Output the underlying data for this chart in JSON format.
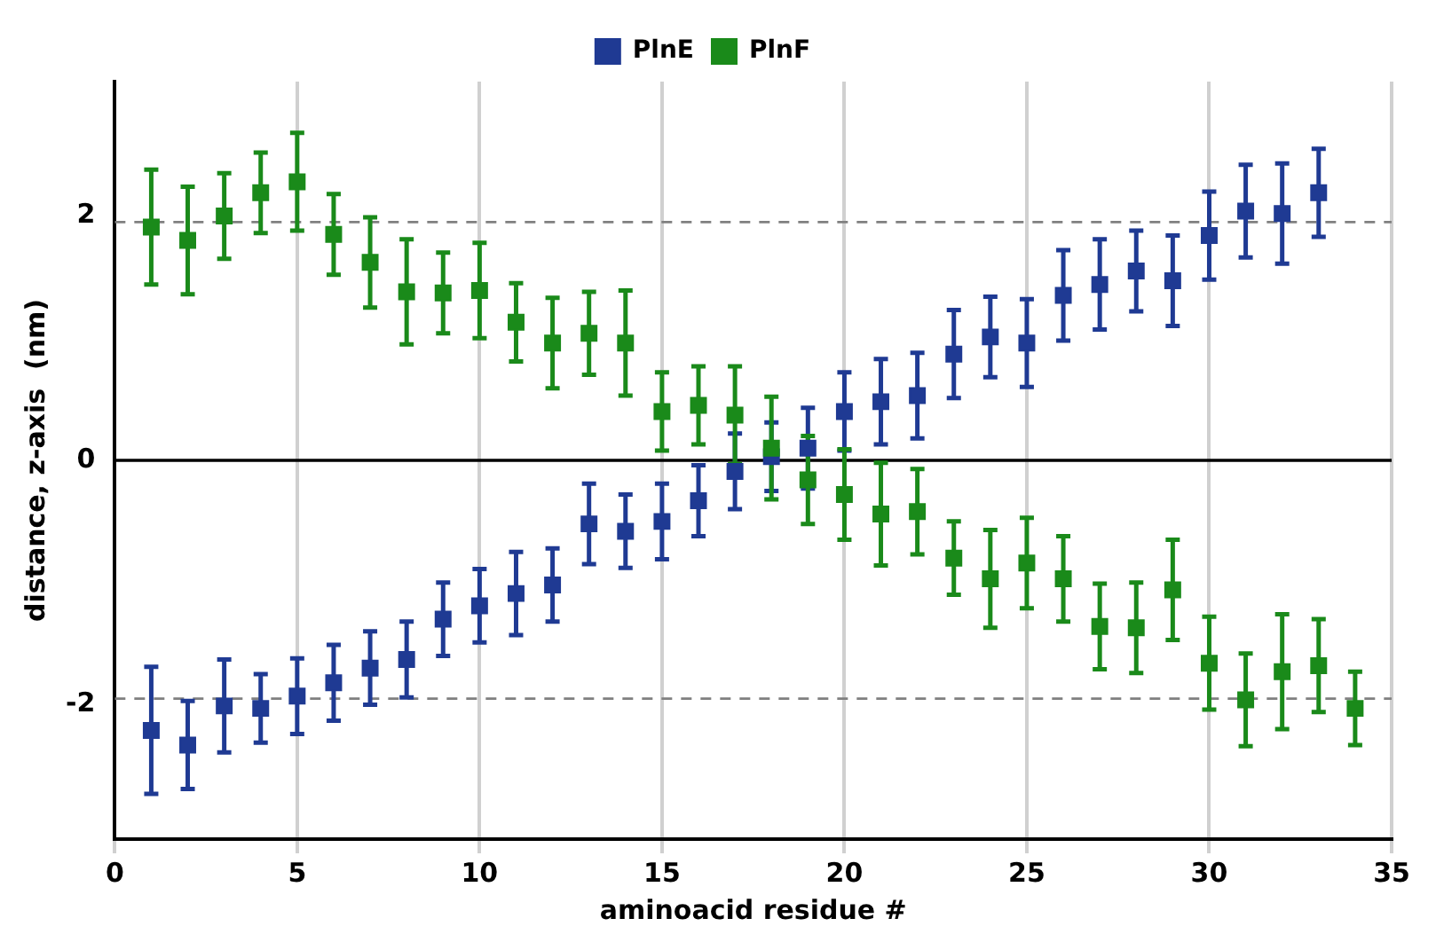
{
  "chart_data": {
    "type": "scatter",
    "xlabel": "aminoacid residue #",
    "ylabel": "distance, z-axis  (nm)",
    "xlim": [
      0,
      35
    ],
    "xticks": [
      0,
      5,
      10,
      15,
      20,
      25,
      30,
      35
    ],
    "ylim": [
      -3.1,
      3.1
    ],
    "yticks": [
      -2,
      0,
      2
    ],
    "grid": "x",
    "legend": "top",
    "marker": "square",
    "ref_lines": [
      {
        "axis": "y",
        "value": 0,
        "color": "#000000",
        "line_style": "solid"
      },
      {
        "axis": "y",
        "value": 1.95,
        "color": "#808080",
        "line_style": "dashed"
      },
      {
        "axis": "y",
        "value": -1.95,
        "color": "#808080",
        "line_style": "dashed"
      }
    ],
    "series": [
      {
        "name": "PlnE",
        "color": "#1f3a93",
        "x": [
          1,
          2,
          3,
          4,
          5,
          6,
          7,
          8,
          9,
          10,
          11,
          12,
          13,
          14,
          15,
          16,
          17,
          18,
          19,
          20,
          21,
          22,
          23,
          24,
          25,
          26,
          27,
          28,
          29,
          30,
          31,
          32,
          33
        ],
        "values": [
          -2.21,
          -2.33,
          -2.01,
          -2.03,
          -1.93,
          -1.82,
          -1.7,
          -1.63,
          -1.3,
          -1.19,
          -1.09,
          -1.02,
          -0.52,
          -0.58,
          -0.5,
          -0.33,
          -0.09,
          0.03,
          0.1,
          0.4,
          0.48,
          0.53,
          0.87,
          1.01,
          0.96,
          1.35,
          1.44,
          1.55,
          1.47,
          1.84,
          2.04,
          2.02,
          2.19
        ],
        "errors": [
          0.52,
          0.36,
          0.38,
          0.28,
          0.31,
          0.31,
          0.3,
          0.31,
          0.3,
          0.3,
          0.34,
          0.3,
          0.33,
          0.3,
          0.31,
          0.29,
          0.31,
          0.28,
          0.33,
          0.32,
          0.35,
          0.35,
          0.36,
          0.33,
          0.36,
          0.37,
          0.37,
          0.33,
          0.37,
          0.36,
          0.38,
          0.41,
          0.36
        ]
      },
      {
        "name": "PlnF",
        "color": "#1a8a1a",
        "x": [
          1,
          2,
          3,
          4,
          5,
          6,
          7,
          8,
          9,
          10,
          11,
          12,
          13,
          14,
          15,
          16,
          17,
          18,
          19,
          20,
          21,
          22,
          23,
          24,
          25,
          26,
          27,
          28,
          29,
          30,
          31,
          32,
          33,
          34
        ],
        "values": [
          1.91,
          1.8,
          2.0,
          2.19,
          2.28,
          1.85,
          1.62,
          1.38,
          1.37,
          1.39,
          1.13,
          0.96,
          1.04,
          0.96,
          0.4,
          0.45,
          0.37,
          0.1,
          -0.16,
          -0.28,
          -0.44,
          -0.42,
          -0.8,
          -0.97,
          -0.84,
          -0.97,
          -1.36,
          -1.37,
          -1.06,
          -1.66,
          -1.96,
          -1.73,
          -1.68,
          -2.03
        ],
        "errors": [
          0.47,
          0.44,
          0.35,
          0.33,
          0.4,
          0.33,
          0.37,
          0.43,
          0.33,
          0.39,
          0.32,
          0.37,
          0.34,
          0.43,
          0.32,
          0.32,
          0.4,
          0.42,
          0.36,
          0.37,
          0.42,
          0.35,
          0.3,
          0.4,
          0.37,
          0.35,
          0.35,
          0.37,
          0.41,
          0.38,
          0.38,
          0.47,
          0.38,
          0.3
        ]
      }
    ]
  }
}
